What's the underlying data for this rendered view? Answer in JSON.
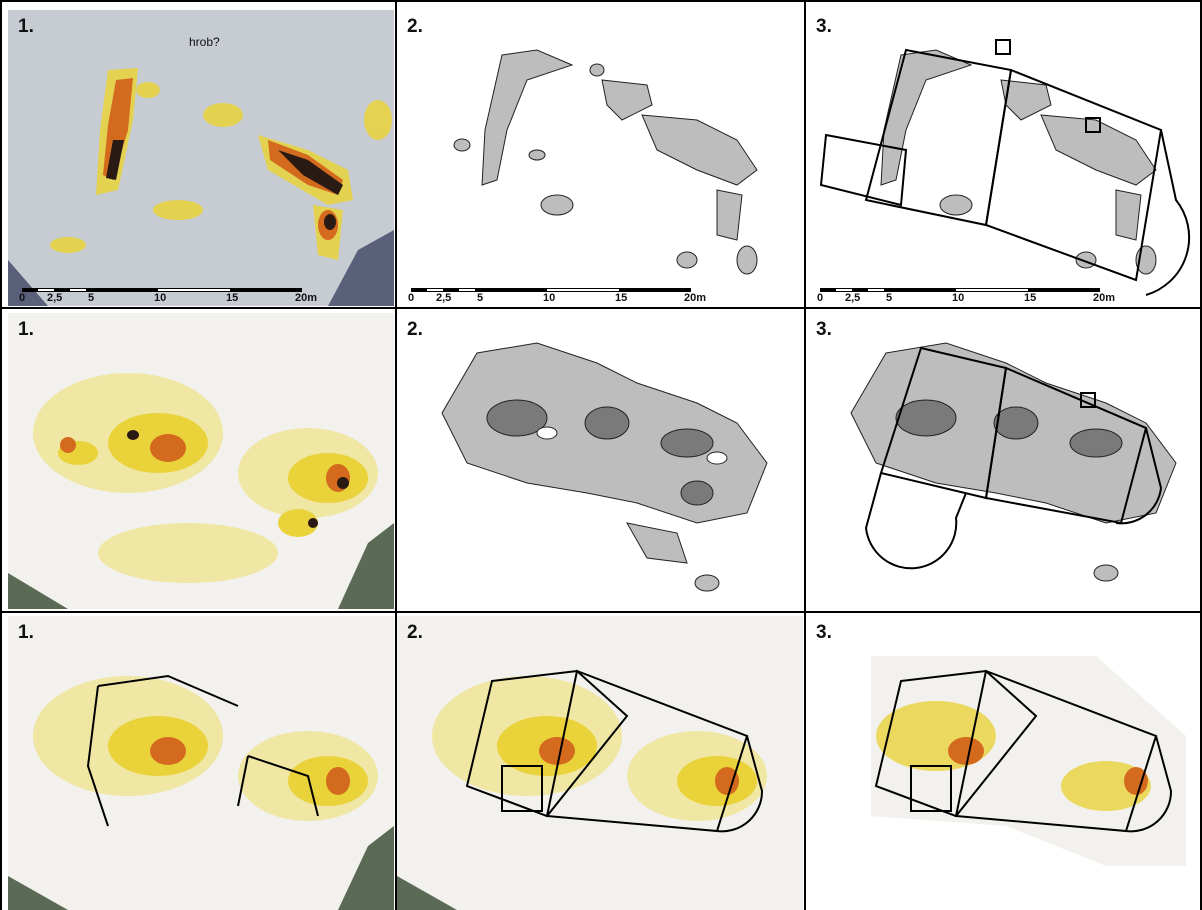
{
  "figure": {
    "colors": {
      "bg_gray": "#c7ccd3",
      "bg_light": "#f3f1ee",
      "yellow": "#e9d23a",
      "pale_yellow": "#efe7a3",
      "orange": "#d46a1e",
      "dark": "#2a1a14",
      "gray_fill": "#bdbdbd",
      "dark_gray": "#7a7a7a",
      "outline": "#000000"
    },
    "rows": [
      {
        "panels": [
          {
            "number": "1.",
            "note": "hrob?",
            "scale": {
              "ticks": [
                "0",
                "2,5",
                "5",
                "10",
                "15",
                "20m"
              ]
            }
          },
          {
            "number": "2.",
            "scale": {
              "ticks": [
                "0",
                "2,5",
                "5",
                "10",
                "15",
                "20m"
              ]
            }
          },
          {
            "number": "3.",
            "scale": {
              "ticks": [
                "0",
                "2,5",
                "5",
                "10",
                "15",
                "20m"
              ]
            }
          }
        ]
      },
      {
        "panels": [
          {
            "number": "1."
          },
          {
            "number": "2."
          },
          {
            "number": "3."
          }
        ]
      },
      {
        "panels": [
          {
            "number": "1."
          },
          {
            "number": "2."
          },
          {
            "number": "3."
          }
        ]
      }
    ]
  }
}
